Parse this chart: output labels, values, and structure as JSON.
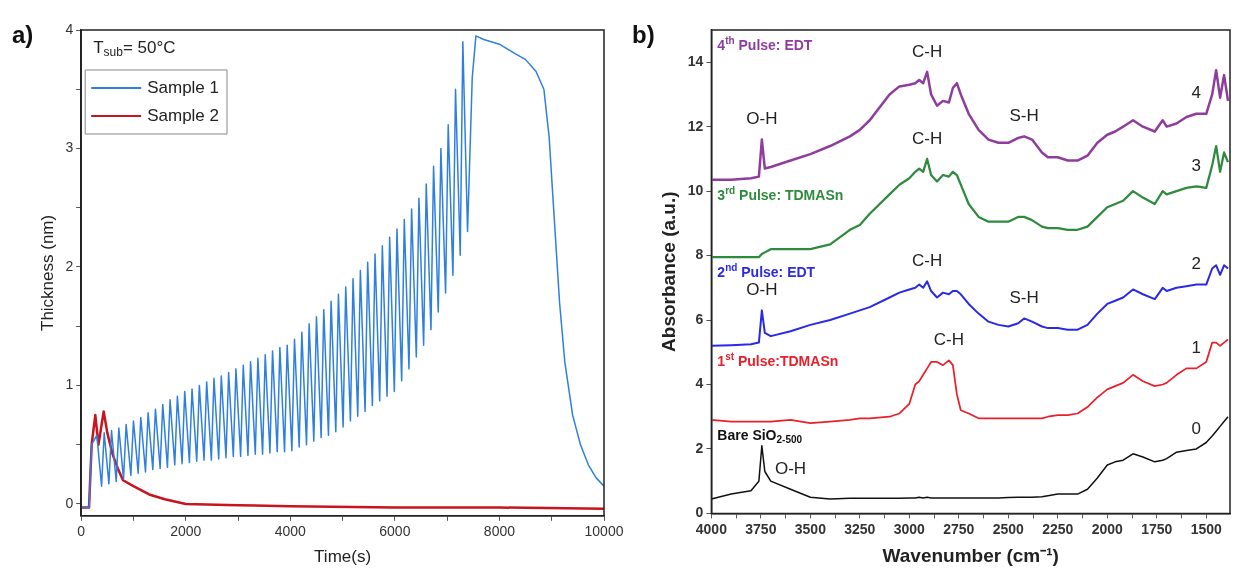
{
  "chart_data": [
    {
      "type": "line",
      "title": "a)",
      "xlabel": "Time(s)",
      "ylabel": "Thickness (nm)",
      "xlim": [
        0,
        10000
      ],
      "ylim": [
        -0.1,
        4
      ],
      "xticks": [
        0,
        {
          "value": 1000,
          "label": null
        },
        2000,
        {
          "value": 3000,
          "label": null
        },
        4000,
        {
          "value": 5000,
          "label": null
        },
        6000,
        {
          "value": 7000,
          "label": null
        },
        8000,
        {
          "value": 9000,
          "label": null
        },
        10000
      ],
      "yticks": [
        0,
        {
          "value": 0.5,
          "label": null
        },
        1,
        {
          "value": 1.5,
          "label": null
        },
        2,
        {
          "value": 2.5,
          "label": null
        },
        3,
        {
          "value": 3.5,
          "label": null
        },
        4
      ],
      "legend": "top left",
      "marker": "none",
      "annotations": [
        "T$_{sub}$= 50°C"
      ],
      "series": [
        {
          "name": "Sample 1",
          "color": "#2f7fe0",
          "x": [
            0,
            150,
            200,
            300,
            390,
            440,
            530,
            580,
            670,
            720,
            810,
            860,
            950,
            1000,
            1090,
            1140,
            1230,
            1280,
            1370,
            1420,
            1510,
            1560,
            1650,
            1700,
            1790,
            1840,
            1930,
            1980,
            2070,
            2120,
            2210,
            2260,
            2350,
            2400,
            2490,
            2540,
            2630,
            2680,
            2770,
            2820,
            2910,
            2960,
            3050,
            3100,
            3190,
            3240,
            3330,
            3380,
            3470,
            3520,
            3610,
            3660,
            3750,
            3800,
            3890,
            3940,
            4030,
            4080,
            4170,
            4220,
            4310,
            4360,
            4450,
            4500,
            4590,
            4640,
            4730,
            4780,
            4870,
            4920,
            5010,
            5060,
            5150,
            5200,
            5290,
            5340,
            5430,
            5480,
            5570,
            5620,
            5710,
            5760,
            5850,
            5900,
            5990,
            6040,
            6130,
            6180,
            6270,
            6320,
            6410,
            6460,
            6550,
            6600,
            6690,
            6740,
            6830,
            6880,
            6970,
            7020,
            7110,
            7160,
            7250,
            7300,
            7390,
            7480,
            7550,
            7700,
            8000,
            8300,
            8500,
            8700,
            8850,
            8950,
            9050,
            9150,
            9250,
            9400,
            9550,
            9700,
            9850,
            10000
          ],
          "values": [
            -0.03,
            -0.03,
            0.5,
            0.58,
            0.15,
            0.6,
            0.17,
            0.62,
            0.19,
            0.64,
            0.21,
            0.67,
            0.24,
            0.7,
            0.26,
            0.73,
            0.27,
            0.77,
            0.29,
            0.8,
            0.3,
            0.84,
            0.31,
            0.88,
            0.33,
            0.91,
            0.34,
            0.95,
            0.35,
            0.97,
            0.36,
            1.0,
            0.37,
            1.03,
            0.37,
            1.06,
            0.38,
            1.08,
            0.39,
            1.11,
            0.4,
            1.14,
            0.4,
            1.17,
            0.41,
            1.2,
            0.42,
            1.23,
            0.42,
            1.26,
            0.43,
            1.29,
            0.44,
            1.32,
            0.44,
            1.34,
            0.45,
            1.39,
            0.48,
            1.45,
            0.5,
            1.52,
            0.53,
            1.58,
            0.56,
            1.64,
            0.58,
            1.71,
            0.61,
            1.77,
            0.65,
            1.83,
            0.7,
            1.9,
            0.74,
            1.97,
            0.78,
            2.04,
            0.83,
            2.11,
            0.87,
            2.18,
            0.91,
            2.25,
            0.95,
            2.32,
            1.04,
            2.4,
            1.14,
            2.49,
            1.24,
            2.58,
            1.34,
            2.7,
            1.47,
            2.85,
            1.62,
            3.0,
            1.78,
            3.2,
            1.93,
            3.5,
            2.1,
            3.9,
            2.3,
            3.6,
            3.95,
            3.92,
            3.88,
            3.8,
            3.75,
            3.65,
            3.5,
            3.1,
            2.4,
            1.7,
            1.2,
            0.75,
            0.5,
            0.33,
            0.22,
            0.15
          ]
        },
        {
          "name": "Sample 2",
          "color": "#c8141e",
          "x": [
            0,
            150,
            200,
            270,
            330,
            430,
            500,
            600,
            700,
            800,
            1000,
            1300,
            1600,
            2000,
            3000,
            4000,
            6000,
            8000,
            10000
          ],
          "values": [
            -0.03,
            -0.03,
            0.5,
            0.75,
            0.5,
            0.78,
            0.6,
            0.42,
            0.3,
            0.2,
            0.15,
            0.08,
            0.04,
            0.0,
            -0.01,
            -0.02,
            -0.03,
            -0.03,
            -0.04
          ]
        }
      ]
    },
    {
      "type": "line",
      "title": "b)",
      "xlabel": "Wavenumber (cm⁻¹)",
      "ylabel": "Absorbance (a.u.)",
      "xlim": [
        4000,
        1380
      ],
      "ylim": [
        0,
        15
      ],
      "xticks": [
        4000,
        {
          "value": 3875,
          "label": null
        },
        3750,
        {
          "value": 3625,
          "label": null
        },
        3500,
        {
          "value": 3375,
          "label": null
        },
        3250,
        {
          "value": 3125,
          "label": null
        },
        3000,
        {
          "value": 2875,
          "label": null
        },
        2750,
        {
          "value": 2625,
          "label": null
        },
        2500,
        {
          "value": 2375,
          "label": null
        },
        2250,
        {
          "value": 2125,
          "label": null
        },
        2000,
        {
          "value": 1875,
          "label": null
        },
        1750,
        {
          "value": 1625,
          "label": null
        },
        1500
      ],
      "yticks": [
        0,
        2,
        4,
        6,
        8,
        10,
        12,
        14
      ],
      "marker": "none",
      "x": [
        4000,
        3900,
        3800,
        3760,
        3745,
        3730,
        3700,
        3600,
        3500,
        3400,
        3300,
        3250,
        3200,
        3100,
        3050,
        3000,
        2970,
        2950,
        2930,
        2910,
        2890,
        2860,
        2830,
        2800,
        2780,
        2760,
        2740,
        2700,
        2650,
        2600,
        2550,
        2500,
        2450,
        2420,
        2380,
        2330,
        2300,
        2250,
        2200,
        2150,
        2100,
        2050,
        2000,
        1960,
        1920,
        1870,
        1820,
        1760,
        1720,
        1700,
        1650,
        1600,
        1550,
        1500,
        1470,
        1450,
        1430,
        1410,
        1390
      ],
      "annotations": [
        {
          "text": "O-H",
          "x": 3745,
          "y": 11.6
        },
        {
          "text": "C-H",
          "x": 2910,
          "y": 13.7
        },
        {
          "text": "C-H",
          "x": 2910,
          "y": 11.0
        },
        {
          "text": "S-H",
          "x": 2420,
          "y": 11.7
        },
        {
          "text": "O-H",
          "x": 3745,
          "y": 6.3
        },
        {
          "text": "C-H",
          "x": 2910,
          "y": 7.2
        },
        {
          "text": "S-H",
          "x": 2420,
          "y": 6.05
        },
        {
          "text": "C-H",
          "x": 2800,
          "y": 4.75
        },
        {
          "text": "O-H",
          "x": 3600,
          "y": 0.75
        },
        {
          "text": "4",
          "x": 1550,
          "y": 12.4
        },
        {
          "text": "3",
          "x": 1550,
          "y": 10.15
        },
        {
          "text": "2",
          "x": 1550,
          "y": 7.1
        },
        {
          "text": "1",
          "x": 1550,
          "y": 4.5
        },
        {
          "text": "0",
          "x": 1550,
          "y": 2.0
        }
      ],
      "series": [
        {
          "name": "Bare SiO$_{2-500}$",
          "color": "#111111",
          "values": [
            0.45,
            0.6,
            0.7,
            1.0,
            2.1,
            1.3,
            1.0,
            0.75,
            0.5,
            0.45,
            0.47,
            0.47,
            0.47,
            0.47,
            0.47,
            0.48,
            0.48,
            0.5,
            0.48,
            0.5,
            0.48,
            0.48,
            0.48,
            0.48,
            0.48,
            0.48,
            0.48,
            0.48,
            0.48,
            0.48,
            0.48,
            0.49,
            0.5,
            0.5,
            0.5,
            0.52,
            0.55,
            0.6,
            0.6,
            0.6,
            0.75,
            1.1,
            1.5,
            1.6,
            1.65,
            1.85,
            1.75,
            1.6,
            1.65,
            1.7,
            1.9,
            1.95,
            2.0,
            2.2,
            2.4,
            2.55,
            2.7,
            2.85,
            3.0
          ]
        },
        {
          "name": "1$^{st}$ Pulse:TDMASn",
          "color": "#e8202a",
          "values": [
            2.9,
            2.85,
            2.85,
            2.85,
            2.85,
            2.85,
            2.85,
            2.9,
            2.8,
            2.85,
            2.9,
            2.95,
            2.95,
            3.0,
            3.1,
            3.4,
            4.0,
            4.1,
            4.3,
            4.5,
            4.7,
            4.7,
            4.6,
            4.75,
            4.6,
            3.7,
            3.2,
            3.1,
            2.95,
            2.95,
            2.95,
            2.95,
            2.95,
            2.95,
            2.95,
            2.95,
            3.0,
            3.05,
            3.05,
            3.1,
            3.3,
            3.6,
            3.85,
            3.95,
            4.05,
            4.3,
            4.1,
            3.95,
            4.0,
            4.05,
            4.3,
            4.5,
            4.5,
            4.7,
            5.3,
            5.3,
            5.2,
            5.3,
            5.4
          ]
        },
        {
          "name": "2$^{nd}$ Pulse: EDT",
          "color": "#2a2ae6",
          "values": [
            5.2,
            5.22,
            5.25,
            5.3,
            6.3,
            5.6,
            5.5,
            5.65,
            5.85,
            6.0,
            6.2,
            6.3,
            6.4,
            6.7,
            6.85,
            6.95,
            7.0,
            7.1,
            7.0,
            7.2,
            6.9,
            6.7,
            6.85,
            6.8,
            6.9,
            6.9,
            6.8,
            6.5,
            6.2,
            5.95,
            5.85,
            5.8,
            5.9,
            6.05,
            5.95,
            5.8,
            5.75,
            5.75,
            5.7,
            5.7,
            5.85,
            6.2,
            6.5,
            6.6,
            6.7,
            6.95,
            6.8,
            6.65,
            7.0,
            6.9,
            7.0,
            7.05,
            7.1,
            7.1,
            7.6,
            7.7,
            7.4,
            7.7,
            7.6
          ]
        },
        {
          "name": "3$^{rd}$ Pulse: TDMASn",
          "color": "#2e8b3e",
          "values": [
            7.95,
            7.95,
            7.95,
            7.95,
            8.05,
            8.1,
            8.2,
            8.2,
            8.2,
            8.35,
            8.8,
            8.95,
            9.3,
            9.9,
            10.2,
            10.4,
            10.6,
            10.7,
            10.6,
            11.0,
            10.5,
            10.3,
            10.5,
            10.45,
            10.6,
            10.5,
            10.2,
            9.6,
            9.2,
            9.05,
            9.05,
            9.05,
            9.2,
            9.2,
            9.1,
            8.9,
            8.85,
            8.85,
            8.8,
            8.8,
            8.9,
            9.2,
            9.5,
            9.6,
            9.7,
            10.0,
            9.8,
            9.6,
            10.0,
            9.9,
            10.0,
            10.1,
            10.15,
            10.1,
            10.8,
            11.4,
            10.6,
            11.2,
            10.9
          ]
        },
        {
          "name": "4$^{th}$ Pulse: EDT",
          "color": "#8e3d9e",
          "values": [
            10.35,
            10.35,
            10.4,
            10.45,
            11.6,
            10.7,
            10.75,
            10.95,
            11.15,
            11.4,
            11.7,
            11.9,
            12.2,
            13.0,
            13.25,
            13.3,
            13.35,
            13.45,
            13.35,
            13.7,
            13.0,
            12.65,
            12.8,
            12.75,
            13.2,
            13.35,
            13.0,
            12.4,
            11.9,
            11.6,
            11.5,
            11.5,
            11.65,
            11.7,
            11.6,
            11.2,
            11.05,
            11.05,
            10.95,
            10.95,
            11.1,
            11.5,
            11.75,
            11.85,
            12.0,
            12.2,
            12.0,
            11.85,
            12.2,
            12.0,
            12.1,
            12.3,
            12.4,
            12.4,
            13.0,
            13.75,
            12.9,
            13.6,
            12.8
          ]
        }
      ]
    }
  ]
}
